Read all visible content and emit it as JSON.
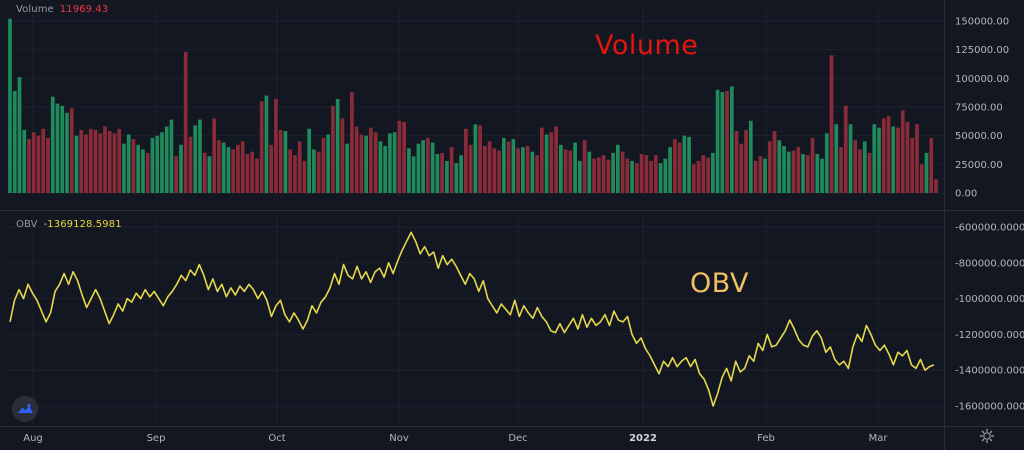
{
  "panes": {
    "volume": {
      "label": "Volume",
      "value": "11969.43"
    },
    "obv": {
      "label": "OBV",
      "value": "-1369128.5981"
    }
  },
  "annotations": {
    "volume": "Volume",
    "obv": "OBV"
  },
  "icons": {
    "logo": "tradingview-logo-icon",
    "settings": "gear-icon"
  },
  "colors": {
    "background": "#131722",
    "grid": "#1e222d",
    "separator": "#2a2e39",
    "up": "#1f8a5c",
    "down": "#8a2b3a",
    "obv_line": "#e5d84a",
    "axis_text": "#b2b5be",
    "volume_annotation": "#e3150f",
    "obv_annotation": "#f0c062"
  },
  "chart_data": [
    {
      "type": "bar",
      "title": "Volume",
      "ylim": [
        0,
        160000
      ],
      "y_ticks": [
        "150000.00",
        "125000.00",
        "100000.00",
        "75000.00",
        "50000.00",
        "25000.00",
        "0.00"
      ],
      "y_tick_values": [
        150000,
        125000,
        100000,
        75000,
        50000,
        25000,
        0
      ],
      "x_ticks": [
        "Aug",
        "Sep",
        "Oct",
        "Nov",
        "Dec",
        "2022",
        "Feb",
        "Mar"
      ],
      "values": [
        152000,
        89000,
        101000,
        55000,
        47000,
        53000,
        50000,
        56000,
        48000,
        84000,
        78000,
        76000,
        70000,
        74000,
        50000,
        55000,
        51000,
        56000,
        55000,
        52000,
        58000,
        54000,
        52000,
        56000,
        43000,
        51000,
        47000,
        42000,
        38000,
        35000,
        48000,
        50000,
        53000,
        58000,
        64000,
        32000,
        42000,
        123000,
        49000,
        59000,
        64000,
        35000,
        32000,
        65000,
        46000,
        44000,
        40000,
        38000,
        42000,
        45000,
        34000,
        36000,
        30000,
        80000,
        85000,
        42000,
        82000,
        55000,
        54000,
        38000,
        33000,
        45000,
        28000,
        56000,
        38000,
        36000,
        48000,
        51000,
        76000,
        82000,
        65000,
        43000,
        88000,
        58000,
        51000,
        50000,
        57000,
        53000,
        45000,
        41000,
        52000,
        53000,
        63000,
        62000,
        39000,
        32000,
        43000,
        46000,
        48000,
        44000,
        34000,
        35000,
        28000,
        40000,
        26000,
        33000,
        56000,
        42000,
        60000,
        59000,
        41000,
        45000,
        39000,
        37000,
        48000,
        45000,
        47000,
        39000,
        40000,
        41000,
        36000,
        33000,
        57000,
        51000,
        53000,
        58000,
        42000,
        38000,
        37000,
        44000,
        28000,
        46000,
        36000,
        30000,
        31000,
        33000,
        29000,
        35000,
        42000,
        36000,
        30000,
        28000,
        26000,
        34000,
        33000,
        28000,
        33000,
        26000,
        30000,
        40000,
        47000,
        44000,
        50000,
        49000,
        25000,
        28000,
        33000,
        31000,
        35000,
        90000,
        88000,
        89000,
        93000,
        54000,
        43000,
        55000,
        63000,
        28000,
        32000,
        30000,
        45000,
        54000,
        46000,
        41000,
        36000,
        37000,
        40000,
        34000,
        33000,
        48000,
        34000,
        30000,
        52000,
        120000,
        60000,
        40000,
        76000,
        60000,
        46000,
        38000,
        45000,
        35000,
        60000,
        57000,
        65000,
        67000,
        58000,
        57000,
        72000,
        62000,
        48000,
        60000,
        25000,
        35000,
        48000,
        12000
      ],
      "directions": [
        "up",
        "up",
        "up",
        "up",
        "down",
        "down",
        "down",
        "down",
        "down",
        "up",
        "up",
        "up",
        "up",
        "down",
        "up",
        "down",
        "down",
        "down",
        "down",
        "down",
        "down",
        "down",
        "down",
        "down",
        "up",
        "up",
        "down",
        "up",
        "up",
        "down",
        "up",
        "up",
        "up",
        "up",
        "up",
        "down",
        "up",
        "down",
        "down",
        "up",
        "up",
        "down",
        "up",
        "down",
        "down",
        "up",
        "up",
        "down",
        "down",
        "down",
        "down",
        "down",
        "down",
        "down",
        "up",
        "down",
        "down",
        "down",
        "up",
        "down",
        "down",
        "down",
        "down",
        "up",
        "up",
        "down",
        "down",
        "up",
        "down",
        "up",
        "down",
        "up",
        "down",
        "down",
        "down",
        "up",
        "down",
        "down",
        "up",
        "up",
        "up",
        "up",
        "down",
        "down",
        "up",
        "up",
        "up",
        "up",
        "down",
        "up",
        "up",
        "down",
        "up",
        "down",
        "up",
        "up",
        "down",
        "down",
        "up",
        "down",
        "down",
        "down",
        "down",
        "down",
        "up",
        "down",
        "up",
        "down",
        "up",
        "down",
        "up",
        "down",
        "down",
        "up",
        "down",
        "down",
        "up",
        "down",
        "down",
        "up",
        "up",
        "down",
        "up",
        "down",
        "down",
        "down",
        "down",
        "up",
        "up",
        "down",
        "down",
        "up",
        "down",
        "down",
        "down",
        "down",
        "down",
        "up",
        "up",
        "up",
        "down",
        "down",
        "up",
        "up",
        "down",
        "down",
        "down",
        "down",
        "up",
        "up",
        "up",
        "down",
        "up",
        "down",
        "down",
        "down",
        "up",
        "down",
        "down",
        "up",
        "down",
        "down",
        "up",
        "up",
        "up",
        "down",
        "down",
        "up",
        "down",
        "down",
        "up",
        "up",
        "up",
        "down",
        "up",
        "down",
        "down",
        "up",
        "down",
        "down",
        "up",
        "down",
        "up",
        "up",
        "down",
        "down",
        "up",
        "down",
        "down",
        "down",
        "down",
        "down",
        "down",
        "up",
        "down",
        "down",
        "down"
      ]
    },
    {
      "type": "line",
      "title": "OBV",
      "ylim": [
        -1690000,
        -560000
      ],
      "y_ticks": [
        "-600000.0000",
        "-800000.0000",
        "-1000000.0000",
        "-1200000.0000",
        "-1400000.0000",
        "-1600000.0000"
      ],
      "y_tick_values": [
        -600000,
        -800000,
        -1000000,
        -1200000,
        -1400000,
        -1600000
      ],
      "x_ticks": [
        "Aug",
        "Sep",
        "Oct",
        "Nov",
        "Dec",
        "2022",
        "Feb",
        "Mar"
      ],
      "values": [
        -1130000,
        -1010000,
        -950000,
        -1000000,
        -920000,
        -970000,
        -1010000,
        -1070000,
        -1130000,
        -1080000,
        -960000,
        -920000,
        -860000,
        -920000,
        -850000,
        -900000,
        -980000,
        -1050000,
        -1000000,
        -950000,
        -1000000,
        -1070000,
        -1140000,
        -1090000,
        -1030000,
        -1070000,
        -1000000,
        -1020000,
        -970000,
        -1000000,
        -950000,
        -990000,
        -960000,
        -1000000,
        -1040000,
        -990000,
        -960000,
        -920000,
        -870000,
        -900000,
        -840000,
        -870000,
        -810000,
        -870000,
        -950000,
        -890000,
        -960000,
        -920000,
        -990000,
        -940000,
        -980000,
        -930000,
        -960000,
        -920000,
        -950000,
        -1000000,
        -960000,
        -1010000,
        -1100000,
        -1040000,
        -1010000,
        -1090000,
        -1130000,
        -1080000,
        -1120000,
        -1170000,
        -1120000,
        -1040000,
        -1080000,
        -1020000,
        -990000,
        -940000,
        -860000,
        -920000,
        -810000,
        -870000,
        -890000,
        -820000,
        -890000,
        -850000,
        -910000,
        -850000,
        -830000,
        -880000,
        -800000,
        -860000,
        -790000,
        -730000,
        -680000,
        -630000,
        -680000,
        -750000,
        -710000,
        -760000,
        -740000,
        -830000,
        -760000,
        -810000,
        -780000,
        -820000,
        -870000,
        -920000,
        -860000,
        -890000,
        -960000,
        -900000,
        -1000000,
        -1040000,
        -1080000,
        -1030000,
        -1060000,
        -1090000,
        -1010000,
        -1100000,
        -1040000,
        -1080000,
        -1110000,
        -1050000,
        -1100000,
        -1130000,
        -1180000,
        -1190000,
        -1140000,
        -1190000,
        -1150000,
        -1110000,
        -1170000,
        -1090000,
        -1160000,
        -1110000,
        -1150000,
        -1130000,
        -1090000,
        -1150000,
        -1070000,
        -1120000,
        -1130000,
        -1100000,
        -1200000,
        -1250000,
        -1220000,
        -1280000,
        -1320000,
        -1370000,
        -1420000,
        -1350000,
        -1380000,
        -1330000,
        -1380000,
        -1350000,
        -1330000,
        -1380000,
        -1340000,
        -1420000,
        -1450000,
        -1510000,
        -1600000,
        -1530000,
        -1440000,
        -1390000,
        -1460000,
        -1350000,
        -1410000,
        -1390000,
        -1320000,
        -1350000,
        -1250000,
        -1290000,
        -1200000,
        -1270000,
        -1260000,
        -1220000,
        -1180000,
        -1120000,
        -1170000,
        -1230000,
        -1260000,
        -1270000,
        -1210000,
        -1180000,
        -1220000,
        -1300000,
        -1270000,
        -1340000,
        -1370000,
        -1350000,
        -1390000,
        -1270000,
        -1200000,
        -1240000,
        -1150000,
        -1200000,
        -1260000,
        -1290000,
        -1260000,
        -1310000,
        -1370000,
        -1300000,
        -1320000,
        -1290000,
        -1370000,
        -1390000,
        -1340000,
        -1400000,
        -1380000,
        -1370000
      ]
    }
  ]
}
